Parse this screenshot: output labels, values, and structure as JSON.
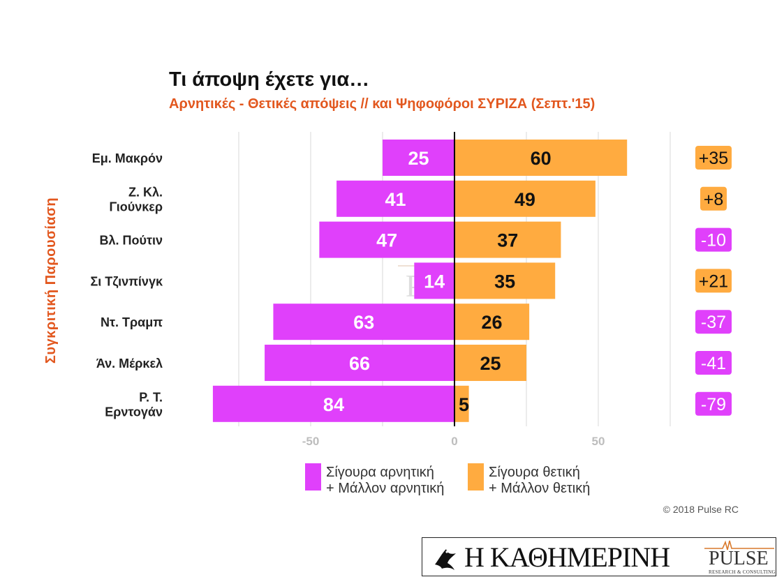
{
  "title": "Τι άποψη έχετε για…",
  "subtitle": "Αρνητικές - Θετικές απόψεις // και Ψηφοφόροι ΣΥΡΙΖΑ (Σεπτ.'15)",
  "copyright": "© 2018 Pulse RC",
  "watermark": {
    "name": "PULSE",
    "tagline": "RESEARCH & CONSULTING"
  },
  "brand": {
    "name": "Η ΚΑΘΗΜΕΡΙΝΗ",
    "pulse": "PULSE",
    "pulse_tagline": "RESEARCH & CONSULTING"
  },
  "chart_data": {
    "type": "bar",
    "orientation": "horizontal-diverging",
    "ylabel": "Συγκριτική Παρουσίαση",
    "xlim": [
      -84,
      85
    ],
    "xticks": [
      -50,
      0,
      50
    ],
    "xtick_labels": [
      "-50",
      "0",
      "50"
    ],
    "grid": true,
    "legend_position": "bottom",
    "categories": [
      [
        "Εμ. Μακρόν"
      ],
      [
        "Ζ. Κλ.",
        "Γιούνκερ"
      ],
      [
        "Βλ. Πούτιν"
      ],
      [
        "Σι Τζινπίνγκ"
      ],
      [
        "Ντ. Τραμπ"
      ],
      [
        "Άν. Μέρκελ"
      ],
      [
        "Ρ. Τ.",
        "Ερντογάν"
      ]
    ],
    "series": [
      {
        "name": "Σίγουρα αρνητική + Μάλλον αρνητική",
        "legend_lines": [
          "Σίγουρα αρνητική",
          "+ Μάλλον αρνητική"
        ],
        "color": "#e040fb",
        "direction": "negative",
        "values": [
          25,
          41,
          47,
          14,
          63,
          66,
          84
        ]
      },
      {
        "name": "Σίγουρα θετική + Μάλλον θετική",
        "legend_lines": [
          "Σίγουρα θετική",
          "+ Μάλλον θετική"
        ],
        "color": "#ffab40",
        "direction": "positive",
        "values": [
          60,
          49,
          37,
          35,
          26,
          25,
          5
        ]
      }
    ],
    "net": {
      "values": [
        "+35",
        "+8",
        "-10",
        "+21",
        "-37",
        "-41",
        "-79"
      ],
      "positive_color": "#ffab40",
      "negative_color": "#e040fb"
    }
  }
}
